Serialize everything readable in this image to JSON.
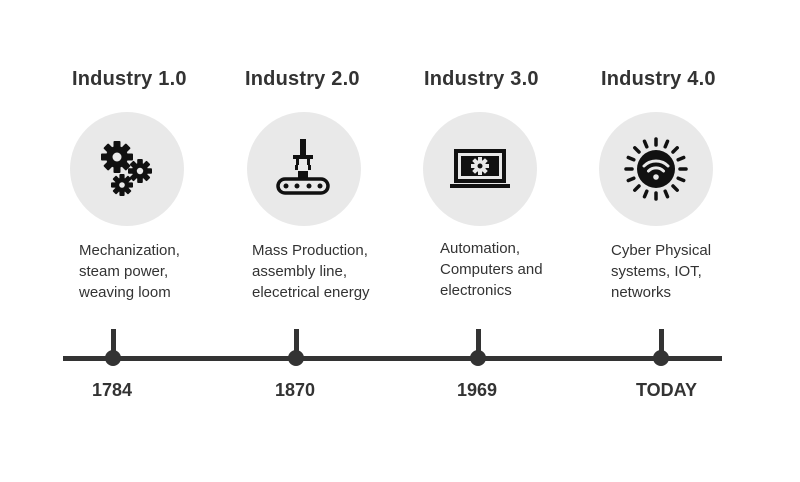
{
  "stages": [
    {
      "title": "Industry 1.0",
      "icon": "gears-icon",
      "description": [
        "Mechanization,",
        "steam power,",
        "weaving loom"
      ],
      "year": "1784"
    },
    {
      "title": "Industry 2.0",
      "icon": "assembly-line-icon",
      "description": [
        "Mass Production,",
        "assembly line,",
        "elecetrical energy"
      ],
      "year": "1870"
    },
    {
      "title": "Industry 3.0",
      "icon": "computer-icon",
      "description": [
        "Automation,",
        "Computers and",
        "electronics"
      ],
      "year": "1969"
    },
    {
      "title": "Industry 4.0",
      "icon": "wifi-sun-icon",
      "description": [
        "Cyber Physical",
        "systems, IOT,",
        "networks"
      ],
      "year": "TODAY"
    }
  ],
  "colors": {
    "text": "#333333",
    "circle_bg": "#e9e9e9",
    "icon": "#111111",
    "line": "#333333"
  }
}
